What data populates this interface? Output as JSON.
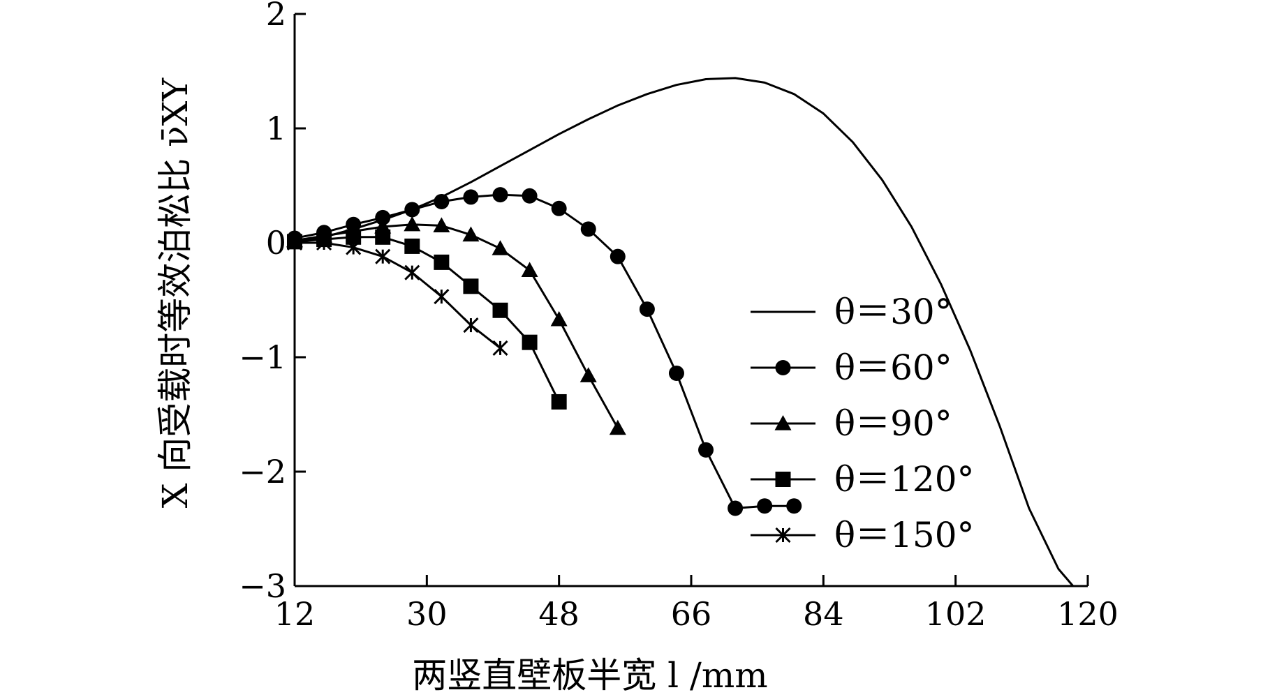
{
  "chart_data": {
    "type": "line",
    "xlabel": "两竖直壁板半宽 l /mm",
    "ylabel": "X 向受载时等效泊松比 ν̄XY",
    "xlim": [
      12,
      120
    ],
    "ylim": [
      -3,
      2
    ],
    "x_ticks": [
      "12",
      "30",
      "48",
      "66",
      "84",
      "102",
      "120"
    ],
    "y_ticks": [
      "2",
      "1",
      "0",
      "−1",
      "−2",
      "−3"
    ],
    "grid": false,
    "legend_position": "right",
    "series": [
      {
        "name": "θ＝30°",
        "marker": "none",
        "x": [
          12,
          16,
          20,
          24,
          28,
          32,
          36,
          40,
          44,
          48,
          52,
          56,
          60,
          64,
          68,
          72,
          76,
          80,
          84,
          88,
          92,
          96,
          100,
          104,
          108,
          112,
          116,
          118
        ],
        "y": [
          0.0,
          0.05,
          0.12,
          0.2,
          0.29,
          0.4,
          0.53,
          0.67,
          0.81,
          0.95,
          1.08,
          1.2,
          1.3,
          1.38,
          1.43,
          1.44,
          1.4,
          1.3,
          1.13,
          0.88,
          0.55,
          0.14,
          -0.36,
          -0.94,
          -1.6,
          -2.32,
          -2.85,
          -3.0
        ]
      },
      {
        "name": "θ＝60°",
        "marker": "circle",
        "x": [
          12,
          16,
          20,
          24,
          28,
          32,
          36,
          40,
          44,
          48,
          52,
          56,
          60,
          64,
          68,
          72,
          76,
          80
        ],
        "y": [
          0.04,
          0.09,
          0.16,
          0.22,
          0.29,
          0.36,
          0.4,
          0.42,
          0.41,
          0.3,
          0.12,
          -0.12,
          -0.58,
          -1.14,
          -1.81,
          -2.32,
          -2.3,
          -2.3
        ]
      },
      {
        "name": "θ＝90°",
        "marker": "triangle",
        "x": [
          12,
          16,
          20,
          24,
          28,
          32,
          36,
          40,
          44,
          48,
          52,
          56
        ],
        "y": [
          0.02,
          0.06,
          0.1,
          0.14,
          0.16,
          0.15,
          0.07,
          -0.05,
          -0.24,
          -0.67,
          -1.16,
          -1.62
        ]
      },
      {
        "name": "θ＝120°",
        "marker": "square",
        "x": [
          12,
          16,
          20,
          24,
          28,
          32,
          36,
          40,
          44,
          48
        ],
        "y": [
          0.01,
          0.03,
          0.05,
          0.05,
          -0.03,
          -0.17,
          -0.38,
          -0.59,
          -0.87,
          -1.39
        ]
      },
      {
        "name": "θ＝150°",
        "marker": "asterisk",
        "x": [
          12,
          16,
          20,
          24,
          28,
          32,
          36,
          40
        ],
        "y": [
          0.0,
          0.0,
          -0.04,
          -0.12,
          -0.26,
          -0.47,
          -0.72,
          -0.92
        ]
      }
    ]
  }
}
